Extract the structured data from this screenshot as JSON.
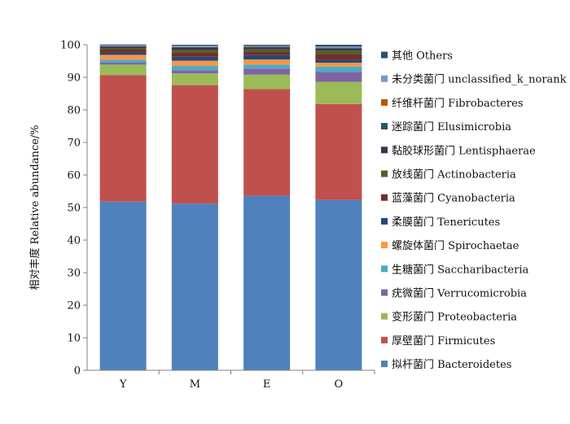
{
  "chart_data": {
    "type": "bar",
    "stacked": true,
    "ylabel": "相对丰度  Relative abundance/%",
    "xlabel": "",
    "title": "",
    "ylim": [
      0,
      100
    ],
    "yticks": [
      0,
      10,
      20,
      30,
      40,
      50,
      60,
      70,
      80,
      90,
      100
    ],
    "grid": false,
    "legend_placement": "right",
    "categories": [
      "Y",
      "M",
      "E",
      "O"
    ],
    "series": [
      {
        "name": "拟杆菌门  Bacteroidetes",
        "color": "#4f81bd",
        "values": [
          51.8,
          51.2,
          53.6,
          52.3
        ]
      },
      {
        "name": "厚壁菌门  Firmicutes",
        "color": "#c0504d",
        "values": [
          38.9,
          36.4,
          32.8,
          29.5
        ]
      },
      {
        "name": "变形菌门  Proteobacteria",
        "color": "#9bbb59",
        "values": [
          3.2,
          3.6,
          4.4,
          6.8
        ]
      },
      {
        "name": "疣微菌门  Verrucomicrobia",
        "color": "#8064a2",
        "values": [
          0.6,
          1.0,
          1.9,
          3.1
        ]
      },
      {
        "name": "生糖菌门  Saccharibacteria",
        "color": "#4bacc6",
        "values": [
          0.9,
          1.3,
          1.2,
          1.6
        ]
      },
      {
        "name": "螺旋体菌门  Spirochaetae",
        "color": "#f79646",
        "values": [
          1.5,
          1.6,
          1.6,
          1.2
        ]
      },
      {
        "name": "柔膜菌门  Tenericutes",
        "color": "#1f497d",
        "values": [
          0.7,
          1.2,
          1.3,
          0.9
        ]
      },
      {
        "name": "蓝藻菌门  Cyanobacteria",
        "color": "#772c2a",
        "values": [
          0.9,
          1.3,
          1.1,
          1.6
        ]
      },
      {
        "name": "放线菌门  Actinobacteria",
        "color": "#4f6228",
        "values": [
          0.5,
          0.9,
          0.7,
          1.2
        ]
      },
      {
        "name": "黏胶球形菌门  Lentisphaerae",
        "color": "#3f3151",
        "values": [
          0.4,
          0.6,
          0.5,
          0.6
        ]
      },
      {
        "name": "迷踪菌门  Elusimicrobia",
        "color": "#215968",
        "values": [
          0.2,
          0.2,
          0.3,
          0.3
        ]
      },
      {
        "name": "纤维杆菌门  Fibrobacteres",
        "color": "#b65708",
        "values": [
          0.1,
          0.1,
          0.1,
          0.1
        ]
      },
      {
        "name": "未分类菌门  unclassified_k_norank",
        "color": "#729aca",
        "values": [
          0.2,
          0.3,
          0.2,
          0.3
        ]
      },
      {
        "name": "其他  Others",
        "color": "#2c4d75",
        "values": [
          0.2,
          0.3,
          0.3,
          0.5
        ]
      }
    ]
  }
}
